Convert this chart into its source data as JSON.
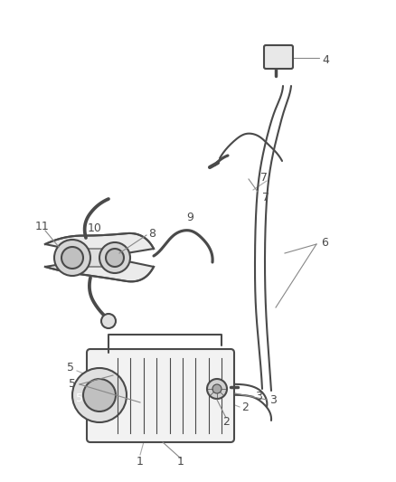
{
  "background_color": "#ffffff",
  "line_color": "#4a4a4a",
  "label_color": "#333333",
  "figsize": [
    4.38,
    5.33
  ],
  "dpi": 100
}
